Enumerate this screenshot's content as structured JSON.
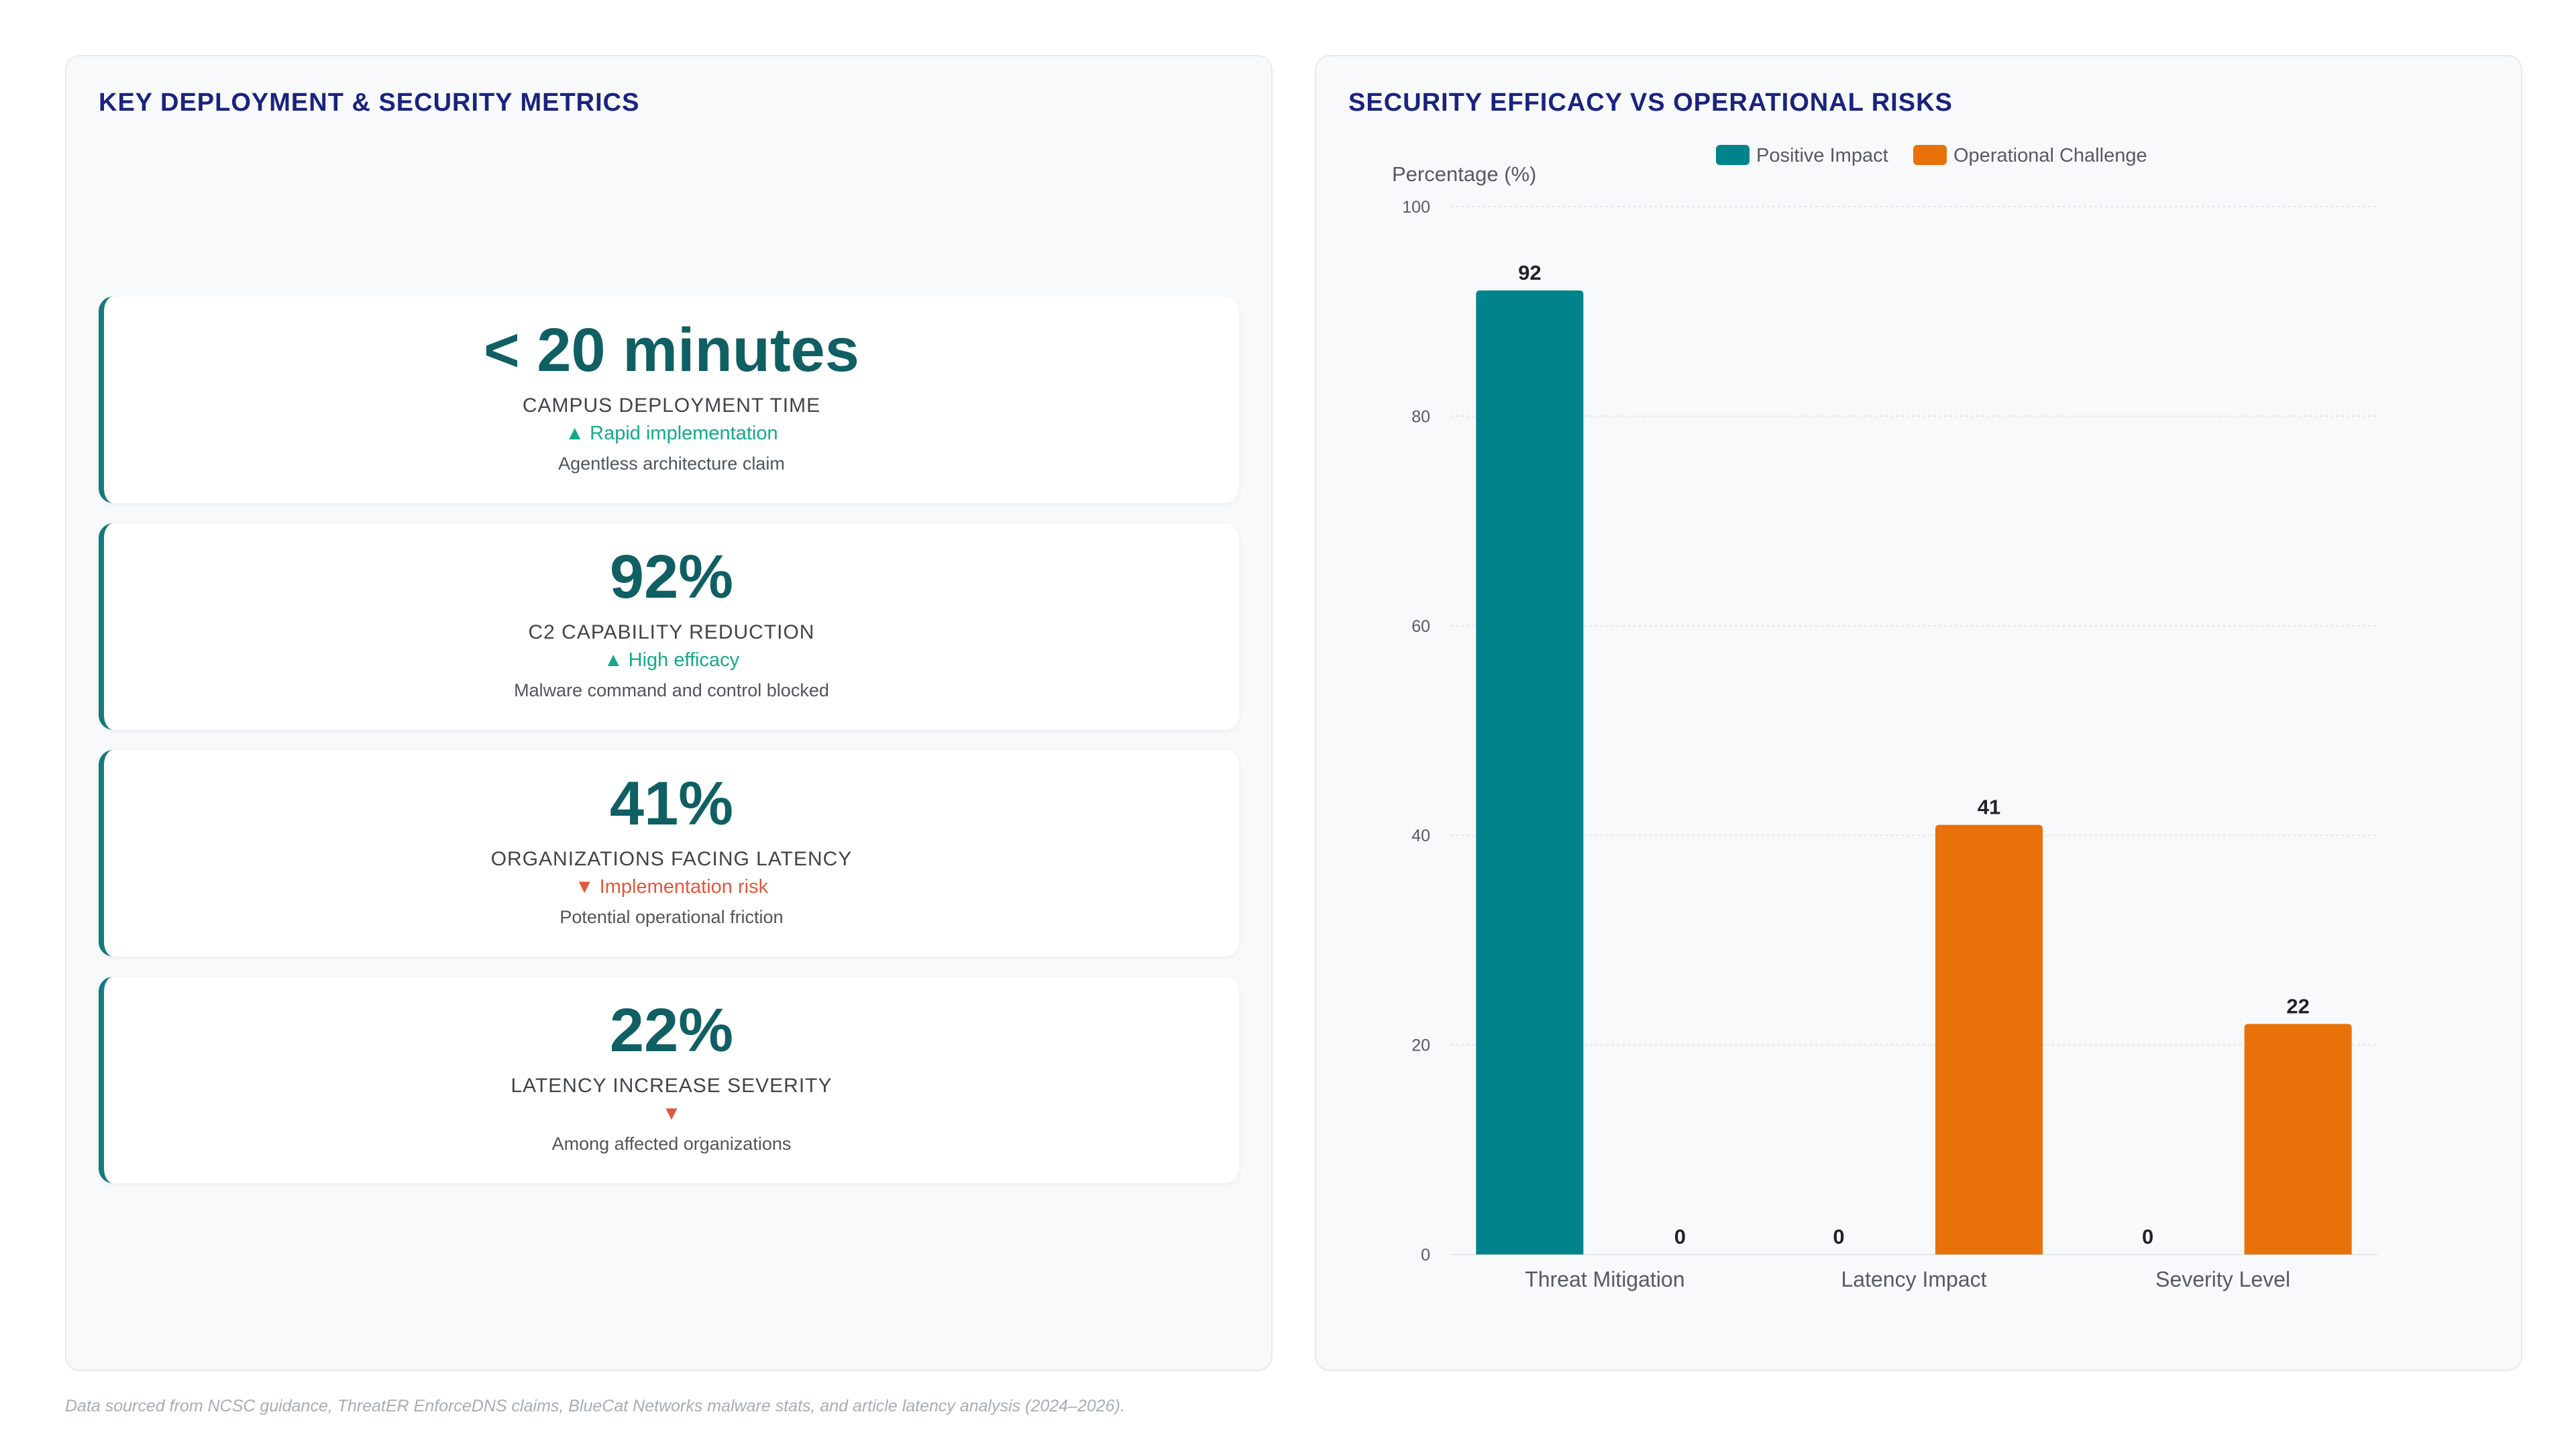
{
  "left_panel": {
    "title": "KEY DEPLOYMENT & SECURITY METRICS",
    "metrics": [
      {
        "value": "< 20 minutes",
        "label": "CAMPUS DEPLOYMENT TIME",
        "trend": "▲ Rapid implementation",
        "trend_direction": "up",
        "note": "Agentless architecture claim"
      },
      {
        "value": "92%",
        "label": "C2 CAPABILITY REDUCTION",
        "trend": "▲ High efficacy",
        "trend_direction": "up",
        "note": "Malware command and control blocked"
      },
      {
        "value": "41%",
        "label": "ORGANIZATIONS FACING LATENCY",
        "trend": "▼ Implementation risk",
        "trend_direction": "down",
        "note": "Potential operational friction"
      },
      {
        "value": "22%",
        "label": "LATENCY INCREASE SEVERITY",
        "trend": "▼",
        "trend_direction": "down",
        "note": "Among affected organizations"
      }
    ]
  },
  "right_panel": {
    "title": "SECURITY EFFICACY VS OPERATIONAL RISKS"
  },
  "chart_data": {
    "type": "bar",
    "title": "SECURITY EFFICACY VS OPERATIONAL RISKS",
    "ylabel": "Percentage (%)",
    "xlabel": "",
    "categories": [
      "Threat Mitigation",
      "Latency Impact",
      "Severity Level"
    ],
    "series": [
      {
        "name": "Positive Impact",
        "color": "#00838a",
        "values": [
          92,
          0,
          0
        ]
      },
      {
        "name": "Operational Challenge",
        "color": "#e8710a",
        "values": [
          0,
          41,
          22
        ]
      }
    ],
    "ylim": [
      0,
      100
    ],
    "yticks": [
      0,
      20,
      40,
      60,
      80,
      100
    ],
    "grid": true,
    "legend_position": "top-center",
    "data_labels": true
  },
  "footer": {
    "source": "Data sourced from NCSC guidance, ThreatER EnforceDNS claims, BlueCat Networks malware stats, and article latency analysis (2024–2026)."
  }
}
